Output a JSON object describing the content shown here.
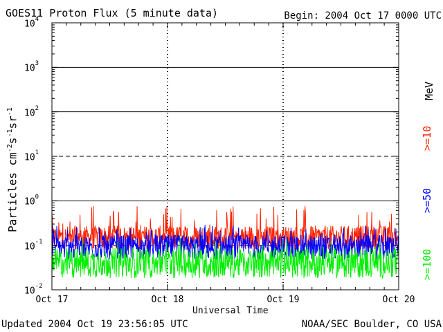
{
  "chart_data": {
    "type": "line",
    "title": "GOES11 Proton Flux (5 minute data)",
    "subtitle": "Begin: 2004 Oct 17 0000 UTC",
    "xlabel": "Universal Time",
    "ylabel": "Particles cm⁻²s⁻¹sr⁻¹",
    "x_ticks": [
      "Oct 17",
      "Oct 18",
      "Oct 19",
      "Oct 20"
    ],
    "xlim": [
      0,
      3
    ],
    "x_unit": "days",
    "y_scale": "log",
    "ylim": [
      0.01,
      10000
    ],
    "y_ticks": [
      {
        "base": "10",
        "exp": "4"
      },
      {
        "base": "10",
        "exp": "3"
      },
      {
        "base": "10",
        "exp": "2"
      },
      {
        "base": "10",
        "exp": "1"
      },
      {
        "base": "10",
        "exp": "0"
      },
      {
        "base": "10",
        "exp": "-1"
      },
      {
        "base": "10",
        "exp": "-2"
      }
    ],
    "grid": "horizontal lines at decades (10 dashed, 0.1 dashed)",
    "legend": {
      "unit": "MeV",
      "entries": [
        {
          "name": ">=10",
          "color": "#ff2200"
        },
        {
          "name": ">=50",
          "color": "#0000ff"
        },
        {
          "name": ">=100",
          "color": "#00ee00"
        }
      ]
    },
    "series": [
      {
        "name": ">=10",
        "color": "#ff2200",
        "typical": 0.15,
        "low": 0.07,
        "high": 0.8
      },
      {
        "name": ">=50",
        "color": "#0000ff",
        "typical": 0.09,
        "low": 0.04,
        "high": 0.3
      },
      {
        "name": ">=100",
        "color": "#00ee00",
        "typical": 0.04,
        "low": 0.015,
        "high": 0.15
      }
    ]
  },
  "footer": {
    "updated": "Updated 2004 Oct 19 23:56:05 UTC",
    "credit": "NOAA/SEC Boulder, CO USA"
  }
}
